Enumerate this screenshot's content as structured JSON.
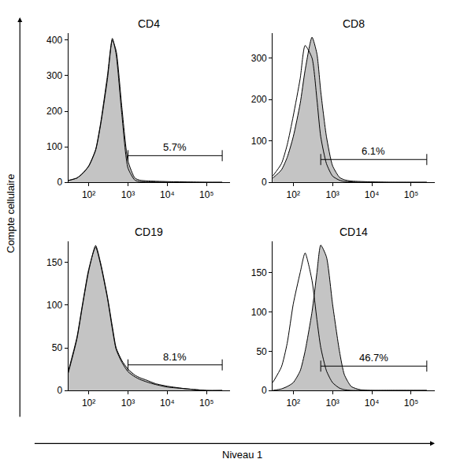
{
  "figure": {
    "ylabel": "Compte cellulaire",
    "xlabel": "Niveau 1"
  },
  "chart_data": [
    {
      "type": "line",
      "title": "CD4",
      "log": "x",
      "grid": false,
      "x": [
        30,
        50,
        70,
        100,
        150,
        200,
        300,
        400,
        500,
        700,
        1000,
        1500,
        2000,
        3000,
        5000,
        10000,
        30000,
        100000,
        250000
      ],
      "series": [
        {
          "type": "area",
          "color": "#c4c4c4",
          "values": [
            5,
            12,
            25,
            45,
            90,
            160,
            290,
            400,
            370,
            210,
            60,
            12,
            6,
            4,
            3,
            2,
            1,
            0,
            0
          ]
        },
        {
          "type": "line",
          "color": "#000000",
          "values": [
            5,
            12,
            25,
            46,
            92,
            165,
            300,
            405,
            360,
            190,
            40,
            6,
            2,
            1,
            1,
            0,
            0,
            0,
            0
          ]
        }
      ],
      "gate": {
        "x": [
          1000,
          250000
        ],
        "y": 75,
        "label": "5.7%"
      },
      "xlim": [
        30,
        400000
      ],
      "xticks": [
        {
          "value": 100,
          "label": "10²"
        },
        {
          "value": 1000,
          "label": "10³"
        },
        {
          "value": 10000,
          "label": "10⁴"
        },
        {
          "value": 100000,
          "label": "10⁵"
        }
      ],
      "ylim": [
        0,
        420
      ],
      "yticks": [
        0,
        100,
        200,
        300,
        400
      ]
    },
    {
      "type": "line",
      "title": "CD8",
      "log": "x",
      "grid": false,
      "x": [
        30,
        50,
        70,
        100,
        150,
        200,
        300,
        400,
        500,
        700,
        1000,
        1500,
        2000,
        3000,
        5000,
        10000,
        30000,
        100000,
        250000
      ],
      "series": [
        {
          "type": "area",
          "color": "#c4c4c4",
          "values": [
            10,
            30,
            60,
            110,
            190,
            270,
            350,
            310,
            220,
            110,
            40,
            12,
            6,
            3,
            2,
            1,
            0,
            0,
            0
          ]
        },
        {
          "type": "line",
          "color": "#000000",
          "values": [
            15,
            45,
            90,
            160,
            250,
            330,
            300,
            200,
            110,
            45,
            15,
            5,
            2,
            1,
            0,
            0,
            0,
            0,
            0
          ]
        }
      ],
      "gate": {
        "x": [
          500,
          250000
        ],
        "y": 55,
        "label": "6.1%"
      },
      "xlim": [
        30,
        400000
      ],
      "xticks": [
        {
          "value": 100,
          "label": "10²"
        },
        {
          "value": 1000,
          "label": "10³"
        },
        {
          "value": 10000,
          "label": "10⁴"
        },
        {
          "value": 100000,
          "label": "10⁵"
        }
      ],
      "ylim": [
        0,
        360
      ],
      "yticks": [
        0,
        100,
        200,
        300
      ]
    },
    {
      "type": "line",
      "title": "CD19",
      "log": "x",
      "grid": false,
      "x": [
        30,
        50,
        70,
        100,
        150,
        200,
        300,
        400,
        500,
        700,
        1000,
        1500,
        2000,
        3000,
        5000,
        10000,
        30000,
        100000,
        250000
      ],
      "series": [
        {
          "type": "area",
          "color": "#c4c4c4",
          "values": [
            20,
            60,
            100,
            140,
            170,
            150,
            110,
            75,
            50,
            35,
            25,
            18,
            15,
            12,
            8,
            5,
            2,
            0,
            0
          ]
        },
        {
          "type": "line",
          "color": "#000000",
          "values": [
            22,
            62,
            102,
            142,
            168,
            148,
            108,
            72,
            48,
            33,
            22,
            16,
            13,
            10,
            7,
            4,
            2,
            0,
            0
          ]
        }
      ],
      "gate": {
        "x": [
          1000,
          250000
        ],
        "y": 30,
        "label": "8.1%"
      },
      "xlim": [
        30,
        400000
      ],
      "xticks": [
        {
          "value": 100,
          "label": "10²"
        },
        {
          "value": 1000,
          "label": "10³"
        },
        {
          "value": 10000,
          "label": "10⁴"
        },
        {
          "value": 100000,
          "label": "10⁵"
        }
      ],
      "ylim": [
        0,
        175
      ],
      "yticks": [
        0,
        50,
        100,
        150
      ]
    },
    {
      "type": "line",
      "title": "CD14",
      "log": "x",
      "grid": false,
      "x": [
        30,
        50,
        70,
        100,
        150,
        200,
        300,
        400,
        500,
        700,
        1000,
        1500,
        2000,
        3000,
        5000,
        10000,
        30000,
        100000,
        250000
      ],
      "series": [
        {
          "type": "area",
          "color": "#c4c4c4",
          "values": [
            0,
            2,
            5,
            10,
            25,
            50,
            100,
            150,
            185,
            170,
            110,
            50,
            20,
            5,
            1,
            0,
            0,
            0,
            0
          ]
        },
        {
          "type": "line",
          "color": "#000000",
          "values": [
            10,
            30,
            60,
            110,
            150,
            175,
            140,
            90,
            55,
            25,
            10,
            3,
            1,
            0,
            0,
            0,
            0,
            0,
            0
          ]
        }
      ],
      "gate": {
        "x": [
          500,
          250000
        ],
        "y": 31,
        "label": "46.7%"
      },
      "xlim": [
        30,
        400000
      ],
      "xticks": [
        {
          "value": 100,
          "label": "10²"
        },
        {
          "value": 1000,
          "label": "10³"
        },
        {
          "value": 10000,
          "label": "10⁴"
        },
        {
          "value": 100000,
          "label": "10⁵"
        }
      ],
      "ylim": [
        0,
        190
      ],
      "yticks": [
        0,
        50,
        100,
        150
      ]
    }
  ]
}
